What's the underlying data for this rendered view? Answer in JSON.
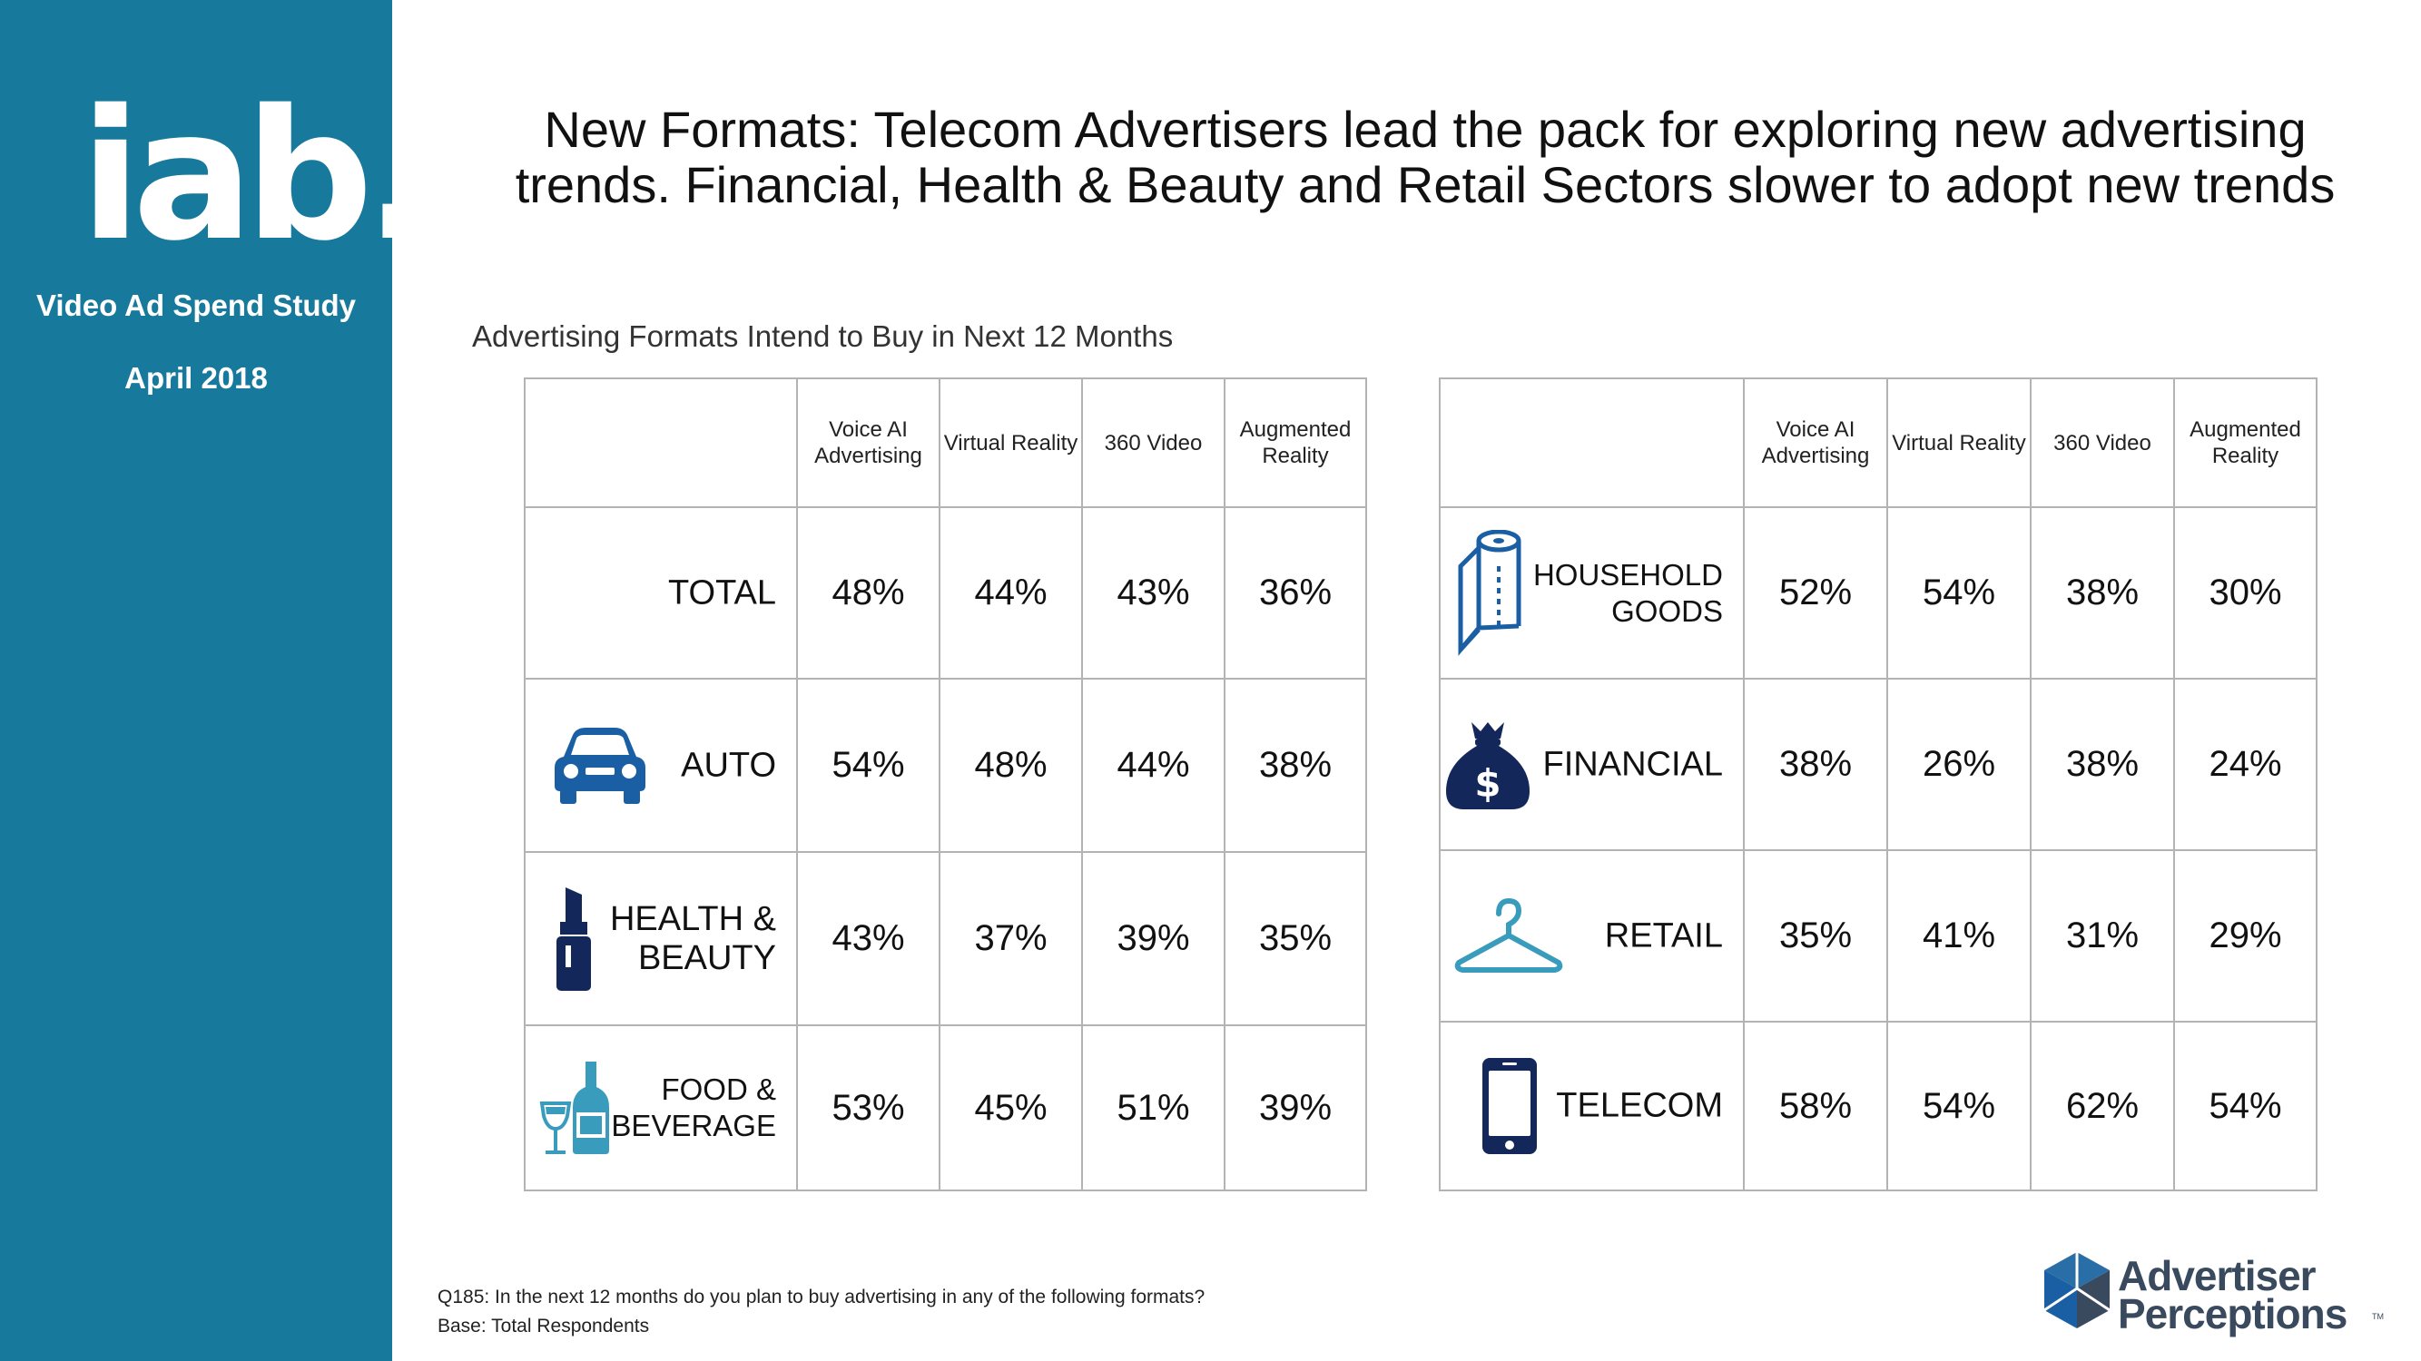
{
  "sidebar": {
    "logo_text": "iab.",
    "study_name": "Video Ad Spend Study",
    "date": "April 2018"
  },
  "title": {
    "line1": "New Formats:  Telecom Advertisers lead the pack for exploring new advertising",
    "line2": "trends.  Financial, Health & Beauty and Retail Sectors slower to adopt new trends"
  },
  "chart_data": {
    "type": "table",
    "title": "Advertising Formats Intend to Buy in Next 12 Months",
    "columns": [
      "Voice AI Advertising",
      "Virtual Reality",
      "360 Video",
      "Augmented Reality"
    ],
    "rows": [
      {
        "category": "TOTAL",
        "values": [
          "48%",
          "44%",
          "43%",
          "36%"
        ]
      },
      {
        "category": "AUTO",
        "values": [
          "54%",
          "48%",
          "44%",
          "38%"
        ]
      },
      {
        "category": "HEALTH & BEAUTY",
        "values": [
          "43%",
          "37%",
          "39%",
          "35%"
        ]
      },
      {
        "category": "FOOD & BEVERAGE",
        "values": [
          "53%",
          "45%",
          "51%",
          "39%"
        ]
      },
      {
        "category": "HOUSEHOLD GOODS",
        "values": [
          "52%",
          "54%",
          "38%",
          "30%"
        ]
      },
      {
        "category": "FINANCIAL",
        "values": [
          "38%",
          "26%",
          "38%",
          "24%"
        ]
      },
      {
        "category": "RETAIL",
        "values": [
          "35%",
          "41%",
          "31%",
          "29%"
        ]
      },
      {
        "category": "TELECOM",
        "values": [
          "58%",
          "54%",
          "62%",
          "54%"
        ]
      }
    ]
  },
  "header": {
    "col1a": "Voice AI",
    "col1b": "Advertising",
    "col2": "Virtual Reality",
    "col3": "360 Video",
    "col4a": "Augmented",
    "col4b": "Reality"
  },
  "labels": {
    "health_a": "HEALTH &",
    "health_b": "BEAUTY",
    "food_a": "FOOD &",
    "food_b": "BEVERAGE",
    "household_a": "HOUSEHOLD",
    "household_b": "GOODS"
  },
  "footnotes": {
    "question": "Q185: In the next 12 months do you plan to buy advertising in any of the following formats?",
    "base": "Base: Total Respondents"
  },
  "brand": {
    "line1": "Advertiser",
    "line2": "Perceptions",
    "tm": "TM"
  },
  "colors": {
    "sidebar": "#17799b",
    "icon_blue": "#1a5fa3",
    "icon_navy": "#14275a",
    "icon_light": "#3a9cbc",
    "icon_mid": "#2a6ea8"
  }
}
